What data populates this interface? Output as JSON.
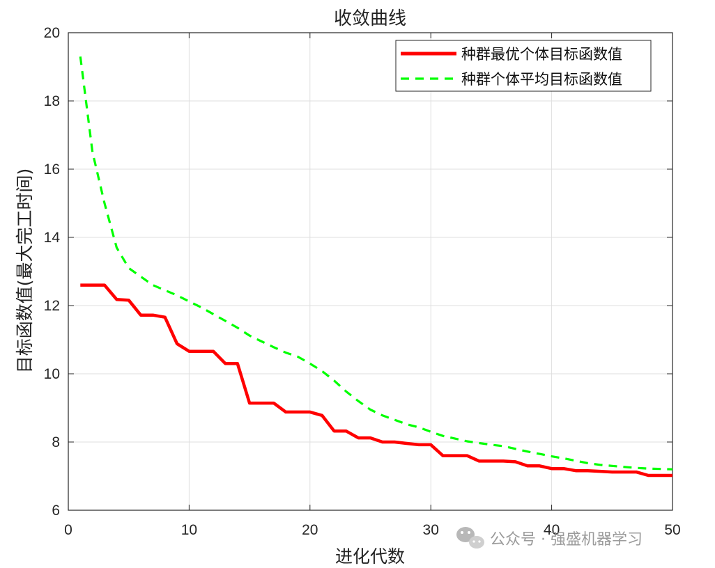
{
  "chart_data": {
    "type": "line",
    "title": "收敛曲线",
    "xlabel": "进化代数",
    "ylabel": "目标函数值(最大完工时间)",
    "xlim": [
      0,
      50
    ],
    "ylim": [
      6,
      20
    ],
    "xticks": [
      0,
      10,
      20,
      30,
      40,
      50
    ],
    "yticks": [
      6,
      8,
      10,
      12,
      14,
      16,
      18,
      20
    ],
    "grid": true,
    "legend_position": "top-right",
    "series": [
      {
        "name": "种群最优个体目标函数值",
        "color": "#ff0000",
        "style": "solid",
        "x": [
          1,
          2,
          3,
          4,
          5,
          6,
          7,
          8,
          9,
          10,
          11,
          12,
          13,
          14,
          15,
          16,
          17,
          18,
          19,
          20,
          21,
          22,
          23,
          24,
          25,
          26,
          27,
          28,
          29,
          30,
          31,
          32,
          33,
          34,
          35,
          36,
          37,
          38,
          39,
          40,
          41,
          42,
          43,
          44,
          45,
          46,
          47,
          48,
          49,
          50
        ],
        "values": [
          12.6,
          12.6,
          12.6,
          12.18,
          12.16,
          11.72,
          11.72,
          11.66,
          10.88,
          10.66,
          10.66,
          10.66,
          10.3,
          10.3,
          9.14,
          9.14,
          9.14,
          8.88,
          8.88,
          8.88,
          8.78,
          8.32,
          8.32,
          8.12,
          8.12,
          8.0,
          8.0,
          7.96,
          7.92,
          7.92,
          7.6,
          7.6,
          7.6,
          7.44,
          7.44,
          7.44,
          7.42,
          7.3,
          7.3,
          7.22,
          7.22,
          7.16,
          7.16,
          7.14,
          7.12,
          7.12,
          7.12,
          7.02,
          7.02,
          7.02
        ]
      },
      {
        "name": "种群个体平均目标函数值",
        "color": "#00ff00",
        "style": "dashed",
        "x": [
          1,
          2,
          3,
          4,
          5,
          6,
          7,
          8,
          9,
          10,
          11,
          12,
          13,
          14,
          15,
          16,
          17,
          18,
          19,
          20,
          21,
          22,
          23,
          24,
          25,
          26,
          27,
          28,
          29,
          30,
          31,
          32,
          33,
          34,
          35,
          36,
          37,
          38,
          39,
          40,
          41,
          42,
          43,
          44,
          45,
          46,
          47,
          48,
          49,
          50
        ],
        "values": [
          19.3,
          16.5,
          15.0,
          13.7,
          13.1,
          12.85,
          12.6,
          12.45,
          12.3,
          12.12,
          11.95,
          11.75,
          11.55,
          11.35,
          11.12,
          10.95,
          10.78,
          10.62,
          10.5,
          10.3,
          10.08,
          9.8,
          9.48,
          9.2,
          8.95,
          8.78,
          8.65,
          8.52,
          8.43,
          8.3,
          8.18,
          8.1,
          8.02,
          7.97,
          7.92,
          7.88,
          7.8,
          7.72,
          7.65,
          7.58,
          7.52,
          7.45,
          7.38,
          7.33,
          7.3,
          7.27,
          7.24,
          7.22,
          7.21,
          7.2
        ]
      }
    ]
  },
  "watermark": {
    "text": "公众号 · 强盛机器学习",
    "icon": "wechat-icon"
  }
}
